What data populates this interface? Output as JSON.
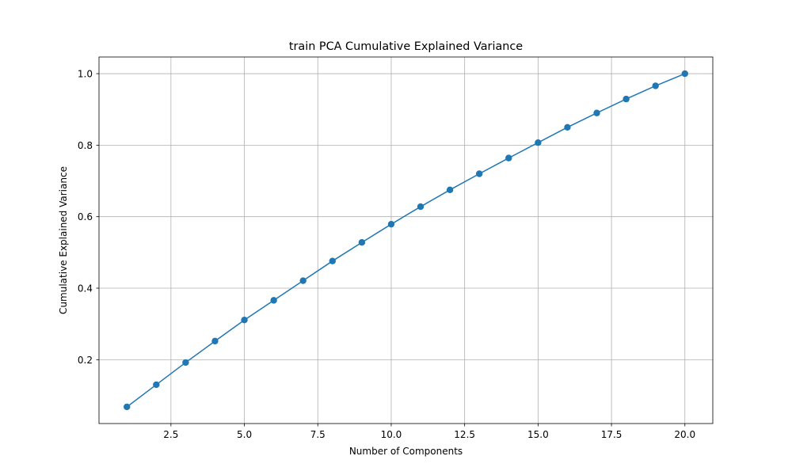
{
  "chart_data": {
    "type": "line",
    "title": "train PCA Cumulative Explained Variance",
    "xlabel": "Number of Components",
    "ylabel": "Cumulative Explained Variance",
    "x": [
      1,
      2,
      3,
      4,
      5,
      6,
      7,
      8,
      9,
      10,
      11,
      12,
      13,
      14,
      15,
      16,
      17,
      18,
      19,
      20
    ],
    "series": [
      {
        "values": [
          0.068,
          0.13,
          0.192,
          0.252,
          0.311,
          0.366,
          0.421,
          0.476,
          0.528,
          0.579,
          0.628,
          0.675,
          0.72,
          0.764,
          0.807,
          0.85,
          0.89,
          0.929,
          0.966,
          1.0
        ],
        "color": "#1f77b4",
        "marker": "circle"
      }
    ],
    "xlim": [
      0.05,
      20.95
    ],
    "ylim": [
      0.0214,
      1.0466
    ],
    "xticks": [
      2.5,
      5.0,
      7.5,
      10.0,
      12.5,
      15.0,
      17.5,
      20.0
    ],
    "xtick_labels": [
      "2.5",
      "5.0",
      "7.5",
      "10.0",
      "12.5",
      "15.0",
      "17.5",
      "20.0"
    ],
    "yticks": [
      0.2,
      0.4,
      0.6,
      0.8,
      1.0
    ],
    "ytick_labels": [
      "0.2",
      "0.4",
      "0.6",
      "0.8",
      "1.0"
    ],
    "grid": true,
    "legend": "none"
  }
}
